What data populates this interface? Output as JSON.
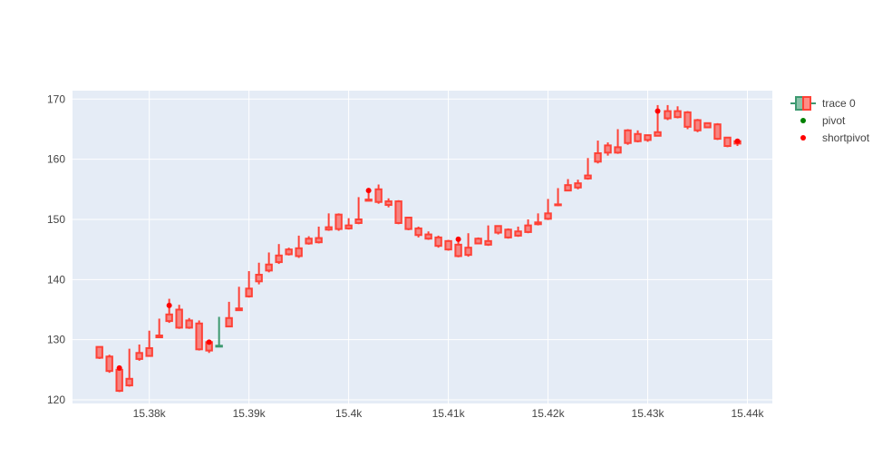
{
  "chart_data": {
    "type": "candlestick",
    "title": "",
    "xlabel": "",
    "ylabel": "",
    "grid": true,
    "legend_position": "top-right",
    "xlim": [
      15372.3,
      15442.5
    ],
    "ylim": [
      119.4,
      171.4
    ],
    "x_ticks": [
      15380,
      15390,
      15400,
      15410,
      15420,
      15430,
      15440
    ],
    "x_tick_labels": [
      "15.38k",
      "15.39k",
      "15.4k",
      "15.41k",
      "15.42k",
      "15.43k",
      "15.44k"
    ],
    "y_ticks": [
      120,
      130,
      140,
      150,
      160,
      170
    ],
    "y_tick_labels": [
      "120",
      "130",
      "140",
      "150",
      "160",
      "170"
    ],
    "legend": [
      {
        "name": "trace 0",
        "kind": "candlestick",
        "increasing_color": "#3D9970",
        "decreasing_color": "#FF4136"
      },
      {
        "name": "pivot",
        "kind": "marker",
        "color": "#008000"
      },
      {
        "name": "shortpivot",
        "kind": "marker",
        "color": "#FF0000"
      }
    ],
    "colors": {
      "decreasing": "#FF4136",
      "increasing": "#3D9970",
      "plot_bg": "#E5ECF6",
      "grid": "#FFFFFF",
      "pivot": "#008000",
      "shortpivot": "#FF0000"
    },
    "series": [
      {
        "name": "trace 0",
        "type": "candlestick",
        "x": [
          15375,
          15376,
          15377,
          15378,
          15379,
          15380,
          15381,
          15382,
          15383,
          15384,
          15385,
          15386,
          15387,
          15388,
          15389,
          15390,
          15391,
          15392,
          15393,
          15394,
          15395,
          15396,
          15397,
          15398,
          15399,
          15400,
          15401,
          15402,
          15403,
          15404,
          15405,
          15406,
          15407,
          15408,
          15409,
          15410,
          15411,
          15412,
          15413,
          15414,
          15415,
          15416,
          15417,
          15418,
          15419,
          15420,
          15421,
          15422,
          15423,
          15424,
          15425,
          15426,
          15427,
          15428,
          15429,
          15430,
          15431,
          15432,
          15433,
          15434,
          15435,
          15436,
          15437,
          15438,
          15439
        ],
        "open": [
          128.8,
          127.2,
          125.0,
          123.5,
          127.8,
          128.6,
          130.7,
          134.2,
          135.0,
          133.2,
          132.7,
          129.6,
          129.0,
          133.6,
          135.2,
          138.5,
          140.8,
          142.5,
          144.0,
          145.0,
          145.2,
          146.8,
          146.9,
          148.7,
          150.8,
          149.0,
          150.0,
          153.3,
          155.0,
          153.0,
          153.0,
          150.3,
          148.5,
          147.5,
          147.0,
          146.4,
          145.8,
          145.3,
          146.8,
          146.4,
          148.9,
          148.3,
          148.0,
          149.0,
          149.5,
          151.0,
          152.5,
          155.7,
          156.0,
          157.3,
          161.0,
          162.3,
          162.0,
          164.8,
          164.2,
          164.0,
          164.5,
          168.0,
          168.0,
          167.8,
          166.5,
          166.0,
          165.8,
          163.6,
          163.0
        ],
        "high": [
          128.8,
          127.5,
          125.4,
          128.5,
          129.2,
          131.5,
          133.5,
          136.8,
          135.8,
          133.6,
          133.2,
          129.6,
          133.8,
          136.3,
          138.8,
          141.4,
          142.8,
          144.5,
          145.9,
          145.3,
          147.3,
          147.2,
          148.8,
          151.0,
          151.0,
          150.2,
          153.7,
          154.8,
          155.8,
          153.5,
          153.2,
          150.3,
          148.8,
          148.0,
          147.3,
          146.6,
          146.8,
          147.7,
          147.0,
          149.0,
          149.0,
          148.5,
          148.8,
          150.0,
          151.0,
          153.4,
          155.2,
          156.7,
          156.6,
          160.2,
          163.1,
          162.8,
          165.0,
          165.0,
          164.8,
          164.0,
          169.0,
          169.0,
          168.8,
          168.0,
          166.7,
          166.0,
          166.0,
          163.6,
          163.0
        ],
        "low": [
          126.8,
          124.5,
          121.3,
          122.2,
          126.5,
          127.2,
          130.3,
          132.8,
          131.8,
          131.8,
          128.2,
          127.8,
          128.8,
          132.3,
          134.8,
          137.0,
          139.2,
          141.2,
          142.6,
          144.0,
          143.6,
          145.8,
          146.0,
          148.1,
          148.1,
          148.3,
          149.2,
          153.0,
          152.6,
          152.0,
          149.2,
          148.2,
          147.0,
          146.6,
          145.3,
          144.8,
          143.7,
          143.8,
          145.9,
          145.6,
          147.5,
          146.8,
          147.1,
          147.7,
          149.0,
          149.9,
          152.2,
          154.7,
          155.0,
          156.6,
          159.3,
          160.6,
          160.9,
          162.4,
          162.8,
          162.9,
          163.8,
          166.5,
          166.8,
          165.0,
          164.5,
          165.2,
          163.2,
          162.0,
          162.2
        ],
        "close": [
          127.0,
          124.8,
          121.5,
          122.4,
          126.8,
          127.3,
          130.4,
          133.1,
          132.0,
          132.0,
          128.4,
          128.2,
          129.0,
          132.2,
          134.9,
          137.2,
          139.7,
          141.5,
          142.9,
          144.2,
          143.9,
          146.0,
          146.2,
          148.3,
          148.4,
          148.5,
          149.4,
          153.1,
          152.9,
          152.4,
          149.4,
          148.4,
          147.4,
          146.8,
          145.6,
          145.0,
          143.9,
          144.1,
          146.0,
          145.8,
          147.8,
          147.0,
          147.3,
          147.9,
          149.2,
          150.1,
          152.4,
          154.8,
          155.3,
          156.8,
          159.6,
          161.1,
          161.1,
          162.7,
          163.0,
          163.2,
          163.9,
          166.8,
          167.0,
          165.4,
          164.8,
          165.3,
          163.4,
          162.2,
          162.6
        ]
      },
      {
        "name": "pivot",
        "type": "scatter",
        "color": "#008000",
        "points": []
      },
      {
        "name": "shortpivot",
        "type": "scatter",
        "color": "#FF0000",
        "points": [
          [
            15377,
            125.3
          ],
          [
            15382,
            135.7
          ],
          [
            15386,
            129.6
          ],
          [
            15402,
            154.8
          ],
          [
            15411,
            146.7
          ],
          [
            15431,
            168.0
          ],
          [
            15439,
            163.0
          ]
        ]
      }
    ]
  }
}
